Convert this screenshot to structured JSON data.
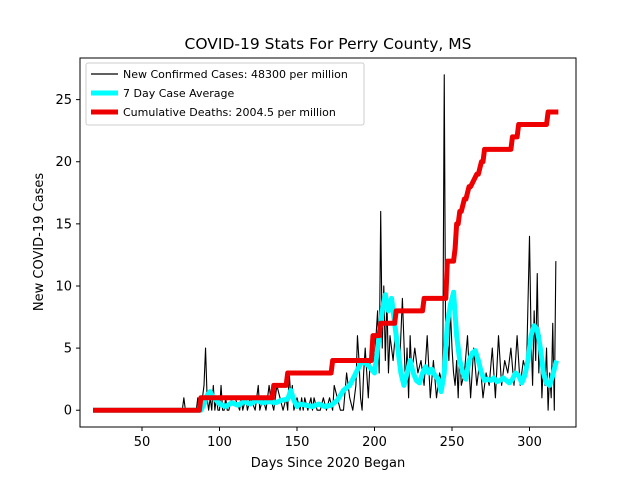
{
  "chart_data": {
    "type": "line",
    "title": "COVID-19 Stats For Perry County, MS",
    "xlabel": "Days Since 2020 Began",
    "ylabel": "New COVID-19 Cases",
    "xlim": [
      10,
      330
    ],
    "ylim": [
      -1.35,
      28.35
    ],
    "xticks": [
      50,
      100,
      150,
      200,
      250,
      300
    ],
    "yticks": [
      0,
      5,
      10,
      15,
      20,
      25
    ],
    "grid": false,
    "legend_position": "upper-left",
    "series": [
      {
        "name": "New Confirmed Cases: 48300 per million",
        "color": "#000000",
        "x": [
          20,
          70,
          76,
          77,
          78,
          79,
          80,
          85,
          86,
          87,
          88,
          89,
          90,
          91,
          92,
          93,
          94,
          95,
          96,
          97,
          98,
          99,
          100,
          101,
          102,
          103,
          104,
          105,
          106,
          108,
          110,
          113,
          114,
          115,
          117,
          118,
          120,
          123,
          124,
          125,
          126,
          128,
          130,
          132,
          133,
          135,
          137,
          139,
          141,
          143,
          144,
          145,
          146,
          147,
          148,
          150,
          152,
          153,
          154,
          155,
          157,
          159,
          160,
          161,
          163,
          165,
          167,
          169,
          171,
          173,
          174,
          176,
          178,
          180,
          182,
          184,
          186,
          188,
          189,
          190,
          191,
          192,
          193,
          194,
          196,
          198,
          200,
          202,
          203,
          204,
          205,
          206,
          207,
          208,
          209,
          210,
          212,
          214,
          216,
          218,
          220,
          221,
          222,
          223,
          224,
          226,
          228,
          230,
          232,
          234,
          236,
          238,
          240,
          242,
          244,
          245,
          246,
          247,
          248,
          249,
          250,
          251,
          252,
          253,
          254,
          255,
          256,
          258,
          260,
          262,
          264,
          266,
          268,
          270,
          272,
          274,
          276,
          278,
          280,
          282,
          284,
          286,
          288,
          290,
          292,
          294,
          296,
          298,
          300,
          301,
          302,
          303,
          304,
          305,
          306,
          307,
          308,
          309,
          310,
          311,
          312,
          313,
          314,
          315,
          316,
          317
        ],
        "y": [
          0,
          0,
          0,
          1,
          0,
          0,
          0,
          0,
          1,
          0,
          0,
          1,
          2,
          5,
          1,
          0,
          1,
          0,
          2,
          0,
          1,
          0,
          0,
          2,
          0,
          0,
          1,
          0,
          0,
          1,
          1,
          0,
          1,
          0,
          1,
          0,
          1,
          0,
          1,
          2,
          0,
          1,
          0,
          2,
          1,
          0,
          2,
          1,
          0,
          1,
          0,
          3,
          1,
          2,
          0,
          1,
          0,
          1,
          0,
          1,
          0,
          1,
          0,
          1,
          0,
          0,
          1,
          0,
          1,
          0,
          2,
          1,
          0,
          0,
          3,
          1,
          0,
          2,
          6,
          4,
          1,
          0,
          3,
          5,
          1,
          6,
          4,
          8,
          3,
          16,
          5,
          10,
          4,
          9,
          3,
          6,
          4,
          7,
          3,
          9,
          2,
          5,
          1,
          6,
          3,
          5,
          3,
          4,
          2,
          6,
          1,
          4,
          1,
          3,
          2,
          27,
          3,
          6,
          4,
          8,
          5,
          3,
          2,
          4,
          1,
          5,
          2,
          3,
          6,
          1,
          5,
          2,
          4,
          1,
          3,
          2,
          5,
          1,
          6,
          2,
          4,
          3,
          5,
          2,
          6,
          2,
          4,
          3,
          14,
          6,
          2,
          8,
          4,
          11,
          3,
          6,
          1,
          4,
          2,
          5,
          0,
          3,
          1,
          7,
          0,
          12
        ]
      },
      {
        "name": "7 Day Case Average",
        "color": "#00ffff",
        "x": [
          20,
          88,
          90,
          92,
          94,
          96,
          98,
          100,
          104,
          108,
          112,
          116,
          120,
          124,
          128,
          132,
          136,
          140,
          144,
          146,
          148,
          150,
          152,
          156,
          160,
          164,
          168,
          172,
          176,
          180,
          184,
          188,
          192,
          196,
          200,
          202,
          205,
          207,
          209,
          211,
          213,
          215,
          217,
          219,
          221,
          223,
          225,
          227,
          229,
          231,
          233,
          235,
          237,
          239,
          241,
          243,
          245,
          247,
          249,
          251,
          253,
          255,
          257,
          259,
          261,
          263,
          265,
          267,
          269,
          271,
          273,
          275,
          277,
          279,
          281,
          283,
          285,
          287,
          289,
          291,
          293,
          295,
          297,
          299,
          301,
          303,
          305,
          307,
          309,
          311,
          313,
          315,
          317
        ],
        "y": [
          0,
          0,
          0.5,
          1.2,
          1.5,
          1.0,
          0.8,
          0.5,
          0.3,
          0.6,
          0.4,
          0.7,
          0.5,
          0.8,
          0.6,
          0.7,
          0.6,
          0.8,
          0.9,
          1.6,
          0.8,
          0.3,
          0.5,
          0.4,
          0.3,
          0.5,
          0.3,
          0.4,
          0.8,
          1.6,
          2.0,
          3.0,
          4.0,
          3.6,
          3.0,
          5.0,
          8.0,
          9.3,
          8.0,
          9.0,
          7.0,
          5.0,
          3.0,
          2.0,
          3.0,
          4.0,
          3.0,
          2.4,
          2.2,
          3.0,
          3.5,
          3.0,
          3.3,
          2.8,
          2.5,
          1.5,
          3.0,
          7.0,
          8.5,
          9.5,
          6.0,
          4.0,
          3.0,
          2.5,
          4.0,
          4.6,
          4.8,
          4.0,
          3.0,
          2.4,
          2.5,
          2.4,
          2.6,
          2.3,
          2.4,
          2.6,
          2.4,
          2.2,
          2.5,
          3.0,
          2.8,
          2.2,
          2.8,
          4.0,
          6.0,
          6.8,
          6.5,
          5.0,
          3.0,
          2.2,
          2.0,
          2.8,
          3.8
        ]
      },
      {
        "name": "Cumulative Deaths: 2004.5 per million",
        "color": "#ee0000",
        "x": [
          20,
          87,
          88,
          134,
          135,
          143,
          144,
          172,
          173,
          198,
          199,
          203,
          204,
          213,
          214,
          231,
          232,
          246,
          247,
          251,
          252,
          253,
          254,
          255,
          256,
          258,
          259,
          261,
          262,
          266,
          267,
          269,
          270,
          271,
          272,
          280,
          281,
          288,
          289,
          292,
          293,
          311,
          312,
          317
        ],
        "y": [
          0,
          0,
          1,
          1,
          2,
          2,
          3,
          3,
          4,
          4,
          6,
          6,
          7,
          7,
          8,
          8,
          9,
          9,
          12,
          12,
          13,
          15,
          15,
          16,
          16,
          17,
          17,
          18,
          18,
          19,
          19,
          20,
          20,
          21,
          21,
          21,
          21,
          21,
          22,
          22,
          23,
          23,
          24,
          24
        ]
      }
    ]
  }
}
